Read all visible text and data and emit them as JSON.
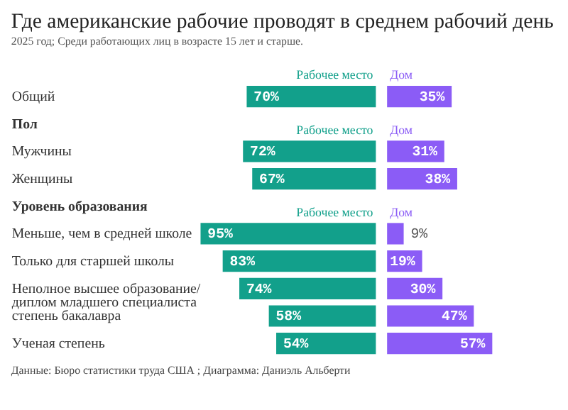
{
  "chart_data": [
    {
      "type": "bar",
      "orientation": "horizontal",
      "title": "Где американские рабочие проводят в среднем рабочий день",
      "subtitle": "2025 год; Среди работающих лиц в возрасте 15 лет и старше.",
      "categories": [
        null,
        "Общий",
        "Пол",
        "Мужчины",
        "Женщины",
        "Уровень образования",
        "Меньше, чем в средней школе",
        "Только для старшей школы",
        "Неполное высшее образование/диплом младшего специалиста",
        "степень бакалавра",
        "Ученая степень"
      ],
      "series": [
        {
          "name": "Рабочее место",
          "color": "#12a08b",
          "values": [
            null,
            70,
            null,
            72,
            67,
            null,
            95,
            83,
            74,
            58,
            54
          ],
          "value_labels": [
            null,
            "70%",
            null,
            "72%",
            "67%",
            null,
            "95%",
            "83%",
            "74%",
            "58%",
            "54%"
          ]
        }
      ],
      "annotations": [
        "Данные: Бюро статистики труда США ; Диаграмма: Даниэль Альберти"
      ]
    },
    {
      "type": "bar",
      "orientation": "horizontal",
      "tick_labels": false,
      "categories": [
        null,
        null,
        null,
        null,
        null,
        null,
        null,
        null,
        null,
        null,
        null
      ],
      "series": [
        {
          "name": "Дом",
          "color": "#8b5cf6",
          "values": [
            null,
            35,
            null,
            31,
            38,
            null,
            9,
            19,
            30,
            47,
            57
          ],
          "value_labels": [
            null,
            "35%",
            null,
            "31%",
            "38%",
            null,
            "9%",
            "19%",
            "30%",
            "47%",
            "57%"
          ]
        }
      ]
    }
  ]
}
